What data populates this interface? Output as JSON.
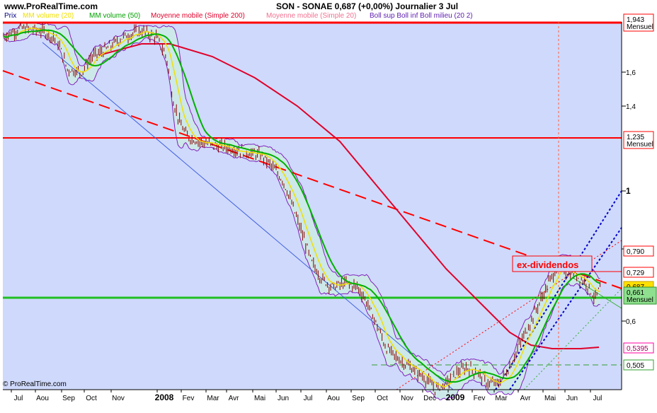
{
  "header": {
    "site": "www.ProRealTime.com",
    "ticker_line": "SON - SONAE    0,687 (+0,00%)    Journalier  3 Jul"
  },
  "legend": {
    "prix": "Prix",
    "mm20": "MM volume (20)",
    "mm50": "MM volume (50)",
    "mm200": "Moyenne mobile (Simple 200)",
    "mm20b": "Moyenne mobile (Simple 20)",
    "boll": "Boll sup Boll inf Boll milieu (20 2)"
  },
  "copyright": "© ProRealTime.com",
  "annotation": "ex-dividendos",
  "colors": {
    "background": "#cfd9fb",
    "price": "#8b0000",
    "mm_red": "#e0002a",
    "mm_green": "#00b000",
    "mm_yellow": "#f0e000",
    "bollinger": "#8020c0",
    "support": "#20c020",
    "resistance": "#ff0000",
    "trend_blue": "#0000cc"
  },
  "chart_data": {
    "type": "line",
    "y_ticks": [
      "1,6",
      "1,4",
      "1",
      "0,8",
      "0,6"
    ],
    "x_ticks": [
      "Jul",
      "Aou",
      "Sep",
      "Oct",
      "Nov",
      "2008",
      "Fev",
      "Mar",
      "Avr",
      "Mai",
      "Jun",
      "Jul",
      "Aou",
      "Sep",
      "Oct",
      "Nov",
      "Dec",
      "2009",
      "Fev",
      "Mar",
      "Avr",
      "Mai",
      "Jun",
      "Jul"
    ],
    "price_tags": [
      {
        "value": "1,943",
        "sub": "Mensuel",
        "style": "red"
      },
      {
        "value": "1,235",
        "sub": "Mensuel",
        "style": "red"
      },
      {
        "value": "0,790",
        "sub": "",
        "style": "red"
      },
      {
        "value": "0,729",
        "sub": "",
        "style": "red"
      },
      {
        "value": "0,687",
        "sub": "",
        "style": "yellow"
      },
      {
        "value": "0,661",
        "sub": "Mensuel",
        "style": "green"
      },
      {
        "value": "0,5395",
        "sub": "",
        "style": "pink"
      },
      {
        "value": "0,505",
        "sub": "",
        "style": "lightgreen"
      }
    ],
    "levels": {
      "resistance_high": 1.943,
      "resistance_mid": 1.235,
      "support": 0.661,
      "last": 0.687
    }
  }
}
